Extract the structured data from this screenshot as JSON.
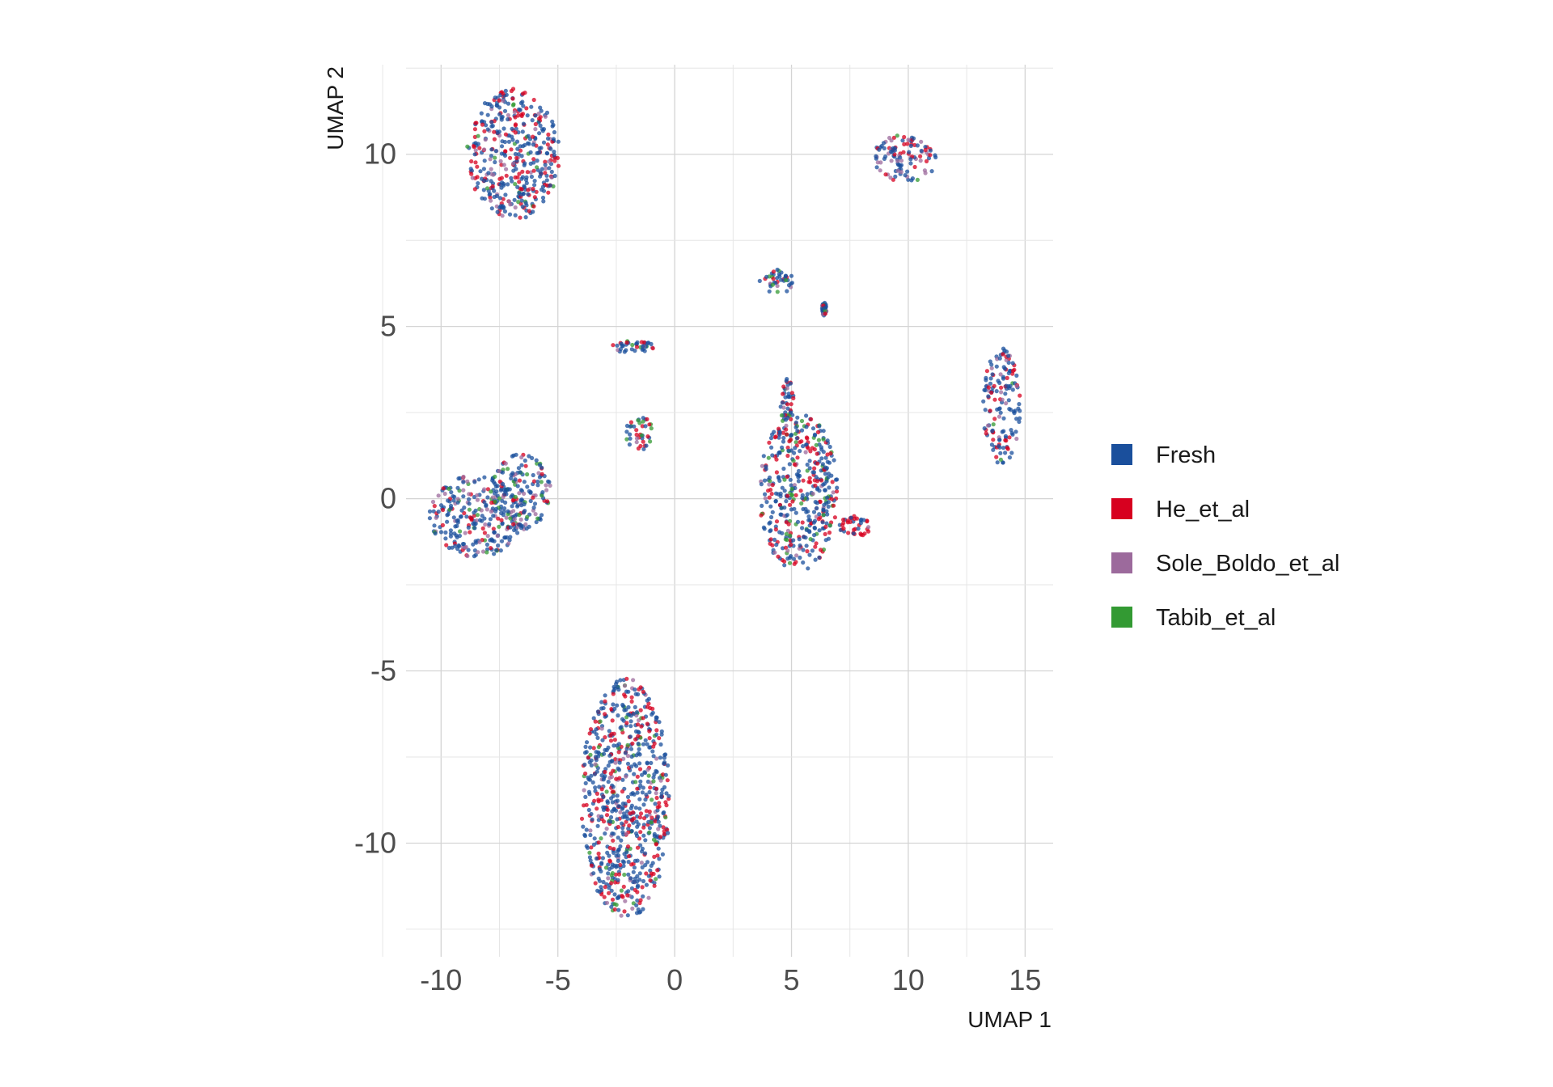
{
  "chart_data": {
    "type": "scatter",
    "title": "",
    "xlabel": "UMAP 1",
    "ylabel": "UMAP 2",
    "xlim": [
      -11.5,
      16.2
    ],
    "ylim": [
      -13.3,
      12.6
    ],
    "x_ticks": [
      -10,
      -5,
      0,
      5,
      10,
      15
    ],
    "y_ticks": [
      -10,
      -5,
      0,
      5,
      10
    ],
    "x_tick_labels": [
      "-10",
      "-5",
      "0",
      "5",
      "10",
      "15"
    ],
    "y_tick_labels": [
      "-10",
      "-5",
      "0",
      "5",
      "10"
    ],
    "grid": true,
    "legend_position": "right",
    "series": [
      {
        "name": "Fresh",
        "color": "#1a4f9c"
      },
      {
        "name": "He_et_al",
        "color": "#d7001f"
      },
      {
        "name": "Sole_Boldo_et_al",
        "color": "#9c6a9c"
      },
      {
        "name": "Tabib_et_al",
        "color": "#339a33"
      }
    ],
    "clusters": [
      {
        "center": [
          -6.9,
          10.0
        ],
        "radius": [
          2.0,
          1.9
        ],
        "weights": [
          0.55,
          0.33,
          0.08,
          0.04
        ]
      },
      {
        "center": [
          -8.5,
          -0.5
        ],
        "radius": [
          2.0,
          1.2
        ],
        "weights": [
          0.58,
          0.15,
          0.17,
          0.1
        ]
      },
      {
        "center": [
          -6.6,
          0.2
        ],
        "radius": [
          1.3,
          1.1
        ],
        "weights": [
          0.62,
          0.14,
          0.14,
          0.1
        ]
      },
      {
        "center": [
          -2.1,
          -8.7
        ],
        "radius": [
          1.9,
          3.5
        ],
        "weights": [
          0.6,
          0.28,
          0.06,
          0.06
        ]
      },
      {
        "center": [
          -1.8,
          4.4
        ],
        "radius": [
          0.9,
          0.2
        ],
        "weights": [
          0.7,
          0.15,
          0.05,
          0.1
        ]
      },
      {
        "center": [
          -1.5,
          1.9
        ],
        "radius": [
          0.6,
          0.5
        ],
        "weights": [
          0.5,
          0.25,
          0.05,
          0.2
        ]
      },
      {
        "center": [
          5.3,
          0.2
        ],
        "radius": [
          1.7,
          2.3
        ],
        "weights": [
          0.58,
          0.27,
          0.05,
          0.1
        ]
      },
      {
        "center": [
          4.8,
          2.8
        ],
        "radius": [
          0.3,
          0.7
        ],
        "weights": [
          0.5,
          0.4,
          0.05,
          0.05
        ]
      },
      {
        "center": [
          7.7,
          -0.8
        ],
        "radius": [
          0.7,
          0.3
        ],
        "weights": [
          0.3,
          0.65,
          0.03,
          0.02
        ]
      },
      {
        "center": [
          4.4,
          6.3
        ],
        "radius": [
          0.8,
          0.4
        ],
        "weights": [
          0.55,
          0.2,
          0.1,
          0.15
        ]
      },
      {
        "center": [
          6.4,
          5.5
        ],
        "radius": [
          0.1,
          0.2
        ],
        "weights": [
          0.7,
          0.1,
          0.1,
          0.1
        ]
      },
      {
        "center": [
          9.9,
          9.9
        ],
        "radius": [
          1.4,
          0.7
        ],
        "weights": [
          0.48,
          0.22,
          0.28,
          0.02
        ]
      },
      {
        "center": [
          14.0,
          2.7
        ],
        "radius": [
          0.8,
          1.7
        ],
        "weights": [
          0.6,
          0.25,
          0.13,
          0.02
        ]
      }
    ]
  }
}
